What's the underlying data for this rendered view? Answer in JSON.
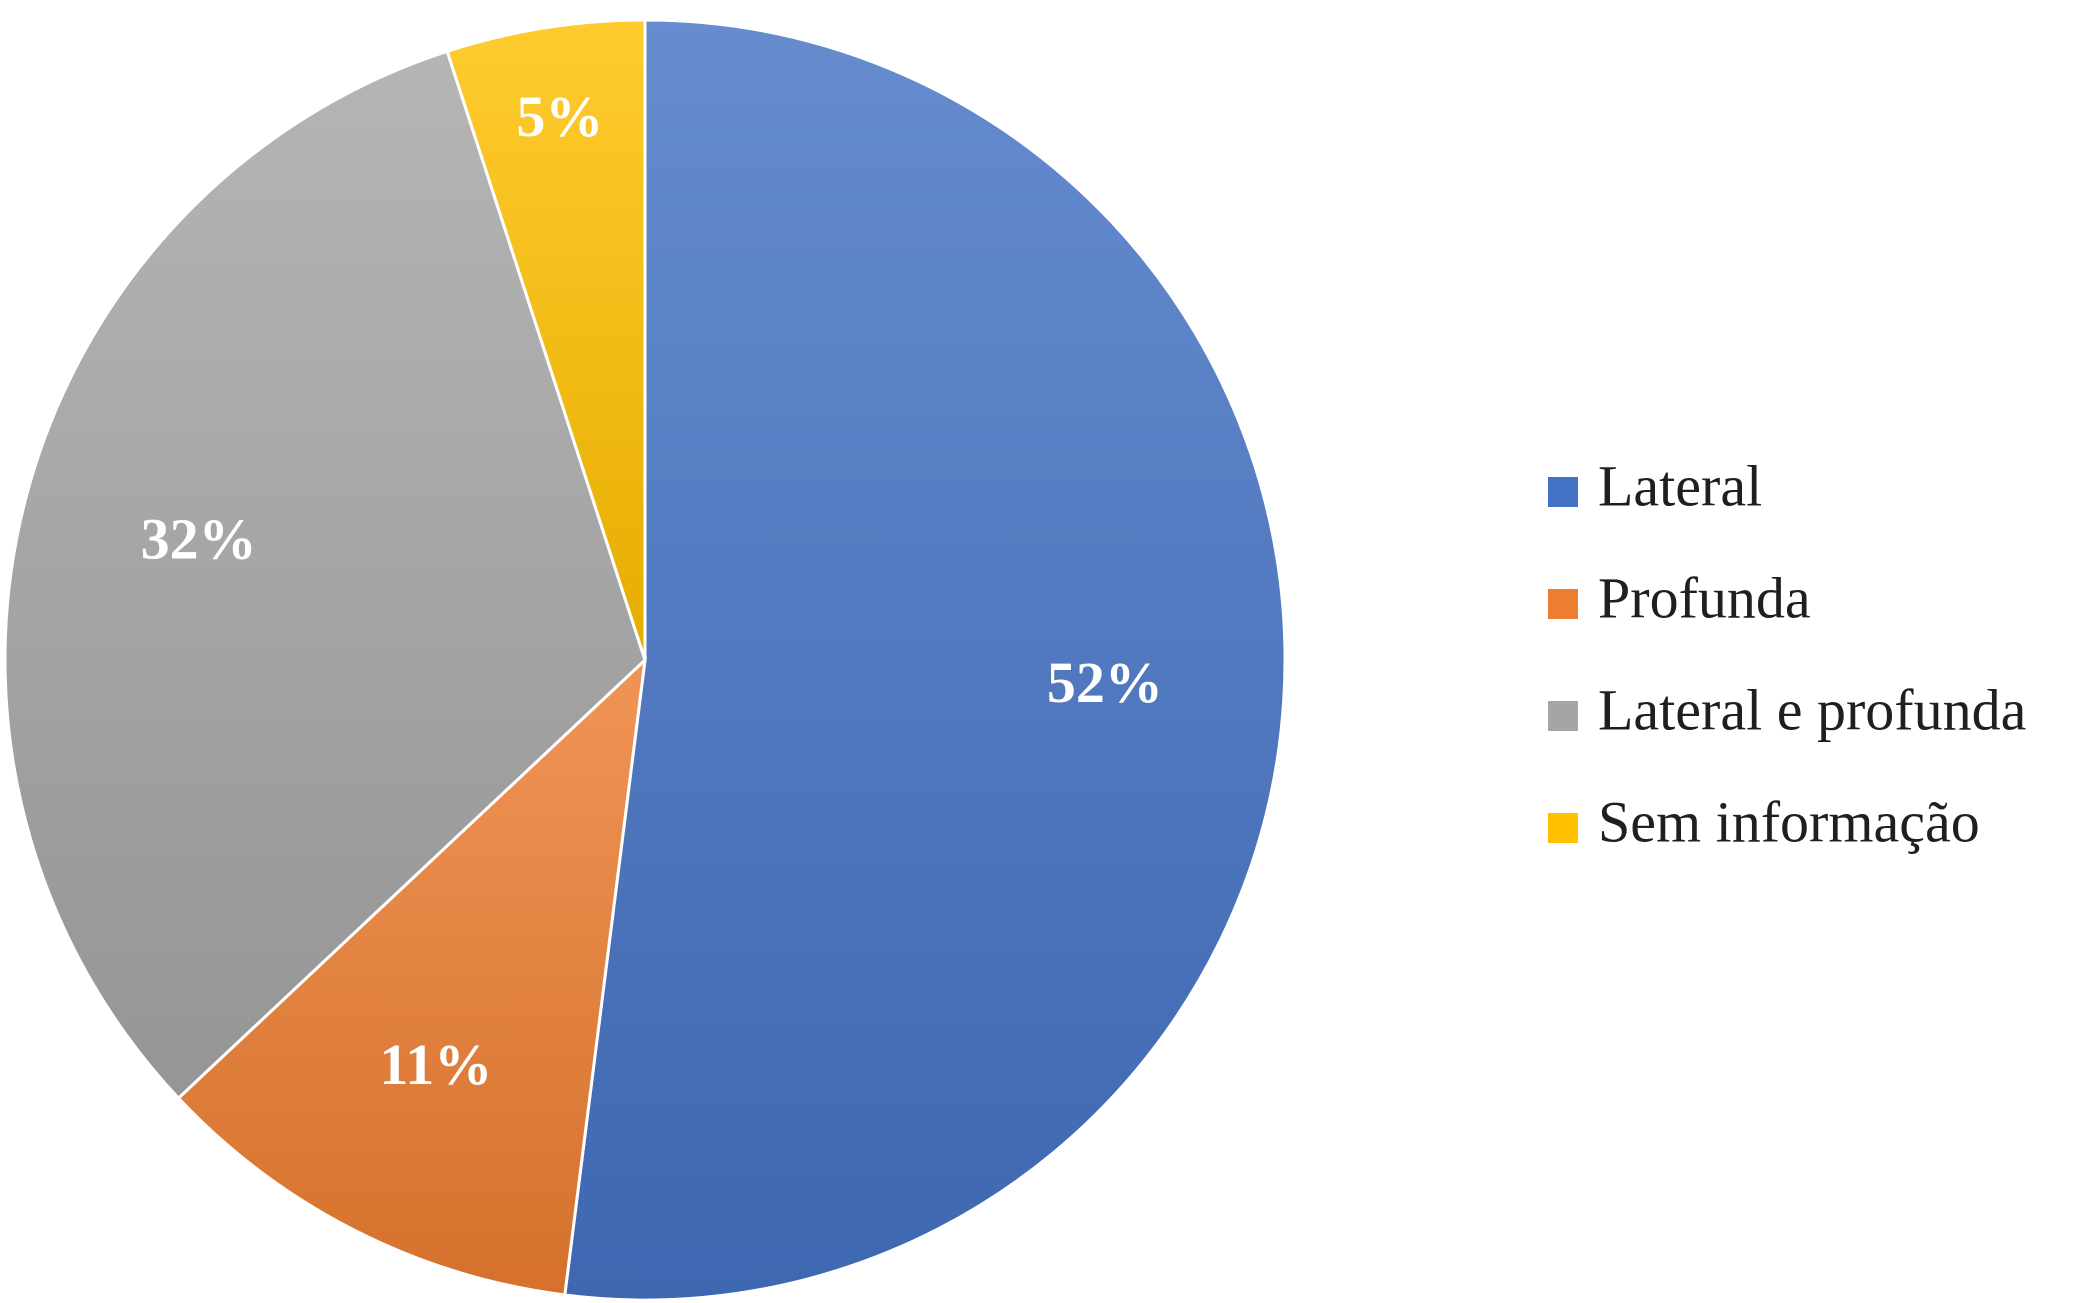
{
  "chart_data": {
    "type": "pie",
    "categories": [
      "Lateral",
      "Profunda",
      "Lateral e profunda",
      "Sem informação"
    ],
    "values": [
      52,
      11,
      32,
      5
    ],
    "data_labels": [
      "52%",
      "11%",
      "32%",
      "5%"
    ],
    "colors": [
      "#4472C4",
      "#ED7D31",
      "#A5A5A5",
      "#FFC000"
    ],
    "start_angle_deg": 0,
    "direction": "clockwise",
    "legend_position": "right"
  }
}
